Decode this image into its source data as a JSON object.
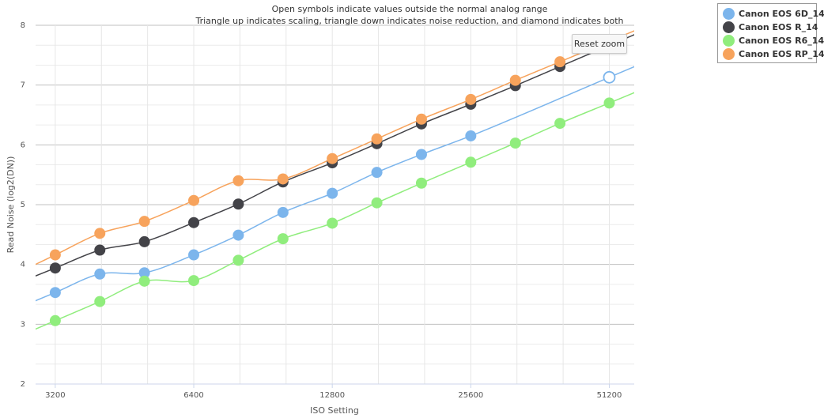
{
  "chart_data": {
    "type": "line",
    "title": "Open symbols indicate values outside the normal analog range",
    "subtitle": "Triangle up indicates scaling, triangle down indicates noise reduction, and diamond indicates both",
    "xlabel": "ISO Setting",
    "ylabel": "Read Noise (log2(DN))",
    "x_scale": "log2",
    "x_ticks": [
      3200,
      6400,
      12800,
      25600,
      51200
    ],
    "x_tick_labels": [
      "3200",
      "6400",
      "12800",
      "25600",
      "51200"
    ],
    "xlim": [
      2900,
      58000
    ],
    "ylim": [
      2,
      8
    ],
    "y_ticks": [
      2,
      3,
      4,
      5,
      6,
      7,
      8
    ],
    "y_tick_labels": [
      "2",
      "3",
      "4",
      "5",
      "6",
      "7",
      "8"
    ],
    "grid": true,
    "legend_position": "top-right outside",
    "series": [
      {
        "name": "Canon EOS 6D_14",
        "color": "#7cb5ec",
        "x": [
          3200,
          4000,
          5000,
          6400,
          8000,
          10000,
          12800,
          16000,
          20000,
          25600,
          51200
        ],
        "y": [
          3.53,
          3.84,
          3.86,
          4.16,
          4.49,
          4.87,
          5.19,
          5.54,
          5.84,
          6.15,
          7.13
        ],
        "open": [
          false,
          false,
          false,
          false,
          false,
          false,
          false,
          false,
          false,
          false,
          true
        ]
      },
      {
        "name": "Canon EOS R_14",
        "color": "#434348",
        "x": [
          3200,
          4000,
          5000,
          6400,
          8000,
          10000,
          12800,
          16000,
          20000,
          25600,
          32000,
          40000
        ],
        "y": [
          3.94,
          4.24,
          4.38,
          4.7,
          5.01,
          5.38,
          5.7,
          6.02,
          6.35,
          6.68,
          6.99,
          7.31
        ],
        "open": [
          false,
          false,
          false,
          false,
          false,
          false,
          false,
          false,
          false,
          false,
          false,
          false
        ]
      },
      {
        "name": "Canon EOS R6_14",
        "color": "#90ed7d",
        "x": [
          3200,
          4000,
          5000,
          6400,
          8000,
          10000,
          12800,
          16000,
          20000,
          25600,
          32000,
          40000,
          51200
        ],
        "y": [
          3.06,
          3.38,
          3.72,
          3.73,
          4.07,
          4.43,
          4.69,
          5.03,
          5.36,
          5.71,
          6.03,
          6.36,
          6.7
        ],
        "open": [
          false,
          false,
          false,
          false,
          false,
          false,
          false,
          false,
          false,
          false,
          false,
          false,
          false
        ]
      },
      {
        "name": "Canon EOS RP_14",
        "color": "#f7a35c",
        "x": [
          3200,
          4000,
          5000,
          6400,
          8000,
          10000,
          12800,
          16000,
          20000,
          25600,
          32000,
          40000
        ],
        "y": [
          4.16,
          4.52,
          4.72,
          5.07,
          5.4,
          5.43,
          5.77,
          6.1,
          6.43,
          6.76,
          7.08,
          7.39
        ],
        "open": [
          false,
          false,
          false,
          false,
          false,
          false,
          false,
          false,
          false,
          false,
          false,
          false
        ]
      }
    ]
  },
  "reset_zoom_label": "Reset zoom"
}
